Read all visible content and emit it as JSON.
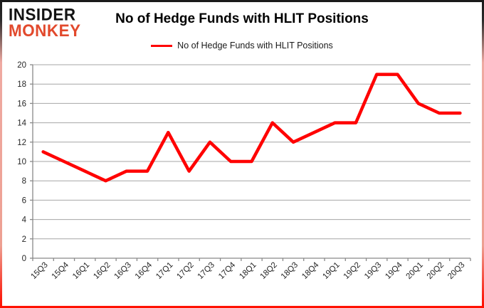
{
  "logo": {
    "line1": "INSIDER",
    "line2": "MONKEY"
  },
  "header": {
    "title": "No of Hedge Funds with HLIT Positions"
  },
  "legend": {
    "label": "No of Hedge Funds with HLIT Positions"
  },
  "colors": {
    "series_line": "#ff0000",
    "gridline": "#a6a6a6",
    "axis": "#898989",
    "tick_text": "#262626",
    "logo_black": "#131313",
    "logo_red": "#e2492c",
    "border_top": "#1a1a1a",
    "border_bottom": "#ff1100"
  },
  "chart_data": {
    "type": "line",
    "title": "No of Hedge Funds with HLIT Positions",
    "categories": [
      "15Q3",
      "15Q4",
      "16Q1",
      "16Q2",
      "16Q3",
      "16Q4",
      "17Q1",
      "17Q2",
      "17Q3",
      "17Q4",
      "18Q1",
      "18Q2",
      "18Q3",
      "18Q4",
      "19Q1",
      "19Q2",
      "19Q3",
      "19Q4",
      "20Q1",
      "20Q2",
      "20Q3"
    ],
    "series": [
      {
        "name": "No of Hedge Funds with HLIT Positions",
        "values": [
          11,
          10,
          9,
          8,
          9,
          9,
          13,
          9,
          12,
          10,
          10,
          14,
          12,
          13,
          14,
          14,
          19,
          19,
          16,
          15,
          15
        ]
      }
    ],
    "xlabel": "",
    "ylabel": "",
    "ylim": [
      0,
      20
    ],
    "y_ticks": [
      0,
      2,
      4,
      6,
      8,
      10,
      12,
      14,
      16,
      18,
      20
    ],
    "grid": "horizontal-major",
    "legend_position": "top-center"
  }
}
